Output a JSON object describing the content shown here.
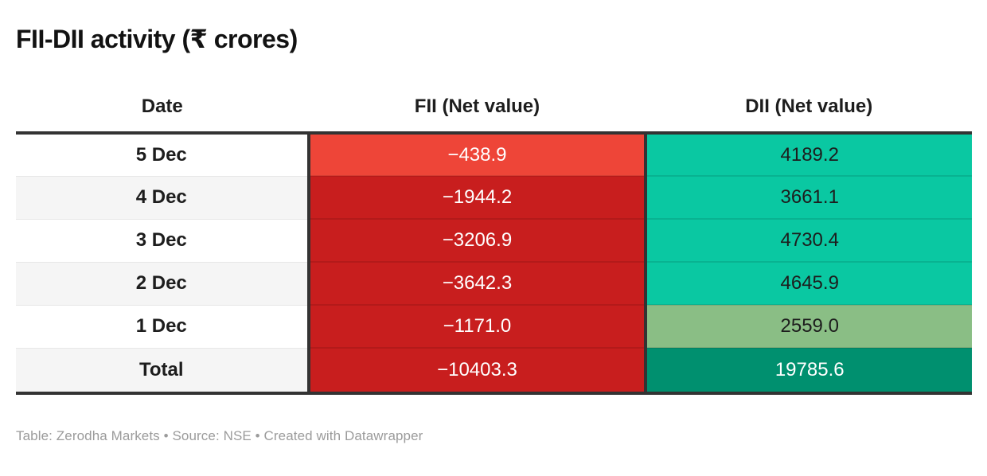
{
  "title": "FII-DII activity (₹ crores)",
  "footer": "Table: Zerodha Markets • Source: NSE • Created with Datawrapper",
  "colors": {
    "fii_negative_light": "#ee4538",
    "fii_negative_dark": "#c81e1e",
    "dii_positive_teal": "#0ac8a2",
    "dii_positive_sage": "#8abe85",
    "dii_total_green": "#00906f",
    "heavy_border": "#333333",
    "zebra_gray": "#f5f5f5",
    "white": "#ffffff",
    "dark_text": "#1d1d1d",
    "light_text": "#ffffff",
    "footer_text": "#9b9b9b"
  },
  "chart_data": {
    "type": "table",
    "title": "FII-DII activity (₹ crores)",
    "columns": [
      "Date",
      "FII (Net value)",
      "DII (Net value)"
    ],
    "rows": [
      {
        "date": "5 Dec",
        "fii": -438.9,
        "dii": 4189.2
      },
      {
        "date": "4 Dec",
        "fii": -1944.2,
        "dii": 3661.1
      },
      {
        "date": "3 Dec",
        "fii": -3206.9,
        "dii": 4730.4
      },
      {
        "date": "2 Dec",
        "fii": -3642.3,
        "dii": 4645.9
      },
      {
        "date": "1 Dec",
        "fii": -1171.0,
        "dii": 2559.0
      },
      {
        "date": "Total",
        "fii": -10403.3,
        "dii": 19785.6
      }
    ],
    "notes": "FII cells shaded red (negative), DII cells shaded green/teal (positive); heatmap-style Datawrapper table"
  },
  "table": {
    "columns": [
      {
        "label": "Date"
      },
      {
        "label": "FII (Net value)"
      },
      {
        "label": "DII (Net value)"
      }
    ],
    "rows": [
      {
        "total": false,
        "date": {
          "value": "5 Dec",
          "bg": "#ffffff",
          "color": "#1d1d1d"
        },
        "fii": {
          "value": "−438.9",
          "bg": "#ee4538",
          "color": "#ffffff"
        },
        "dii": {
          "value": "4189.2",
          "bg": "#0ac8a2",
          "color": "#1d1d1d"
        }
      },
      {
        "total": false,
        "date": {
          "value": "4 Dec",
          "bg": "#f5f5f5",
          "color": "#1d1d1d"
        },
        "fii": {
          "value": "−1944.2",
          "bg": "#c81e1e",
          "color": "#ffffff"
        },
        "dii": {
          "value": "3661.1",
          "bg": "#0ac8a2",
          "color": "#1d1d1d"
        }
      },
      {
        "total": false,
        "date": {
          "value": "3 Dec",
          "bg": "#ffffff",
          "color": "#1d1d1d"
        },
        "fii": {
          "value": "−3206.9",
          "bg": "#c81e1e",
          "color": "#ffffff"
        },
        "dii": {
          "value": "4730.4",
          "bg": "#0ac8a2",
          "color": "#1d1d1d"
        }
      },
      {
        "total": false,
        "date": {
          "value": "2 Dec",
          "bg": "#f5f5f5",
          "color": "#1d1d1d"
        },
        "fii": {
          "value": "−3642.3",
          "bg": "#c81e1e",
          "color": "#ffffff"
        },
        "dii": {
          "value": "4645.9",
          "bg": "#0ac8a2",
          "color": "#1d1d1d"
        }
      },
      {
        "total": false,
        "date": {
          "value": "1 Dec",
          "bg": "#ffffff",
          "color": "#1d1d1d"
        },
        "fii": {
          "value": "−1171.0",
          "bg": "#c81e1e",
          "color": "#ffffff"
        },
        "dii": {
          "value": "2559.0",
          "bg": "#8abe85",
          "color": "#1d1d1d"
        }
      },
      {
        "total": true,
        "date": {
          "value": "Total",
          "bg": "#f5f5f5",
          "color": "#1d1d1d"
        },
        "fii": {
          "value": "−10403.3",
          "bg": "#c81e1e",
          "color": "#ffffff"
        },
        "dii": {
          "value": "19785.6",
          "bg": "#00906f",
          "color": "#ffffff"
        }
      }
    ]
  }
}
